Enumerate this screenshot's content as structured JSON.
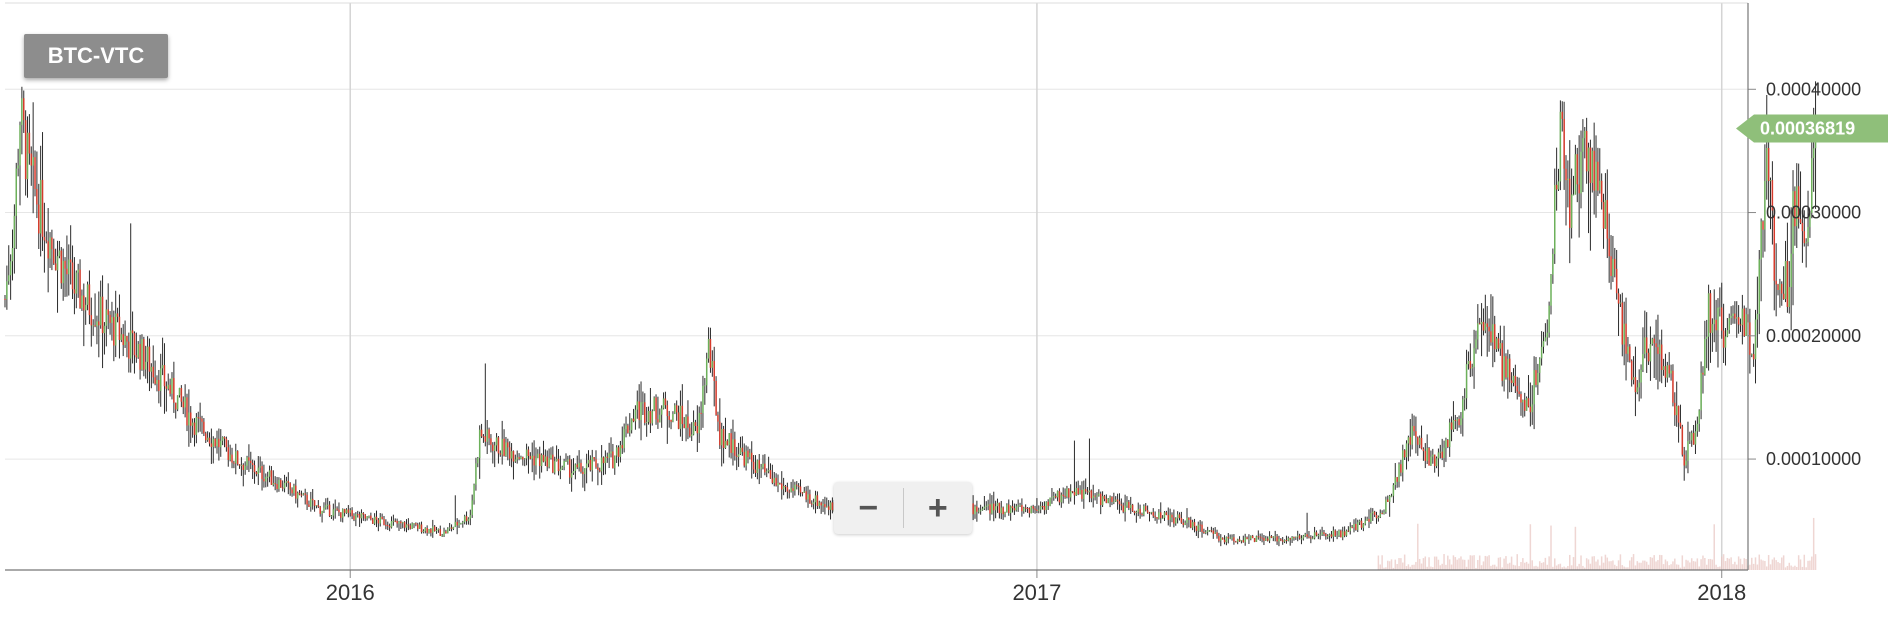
{
  "chart_data": {
    "type": "candlestick",
    "pair": "BTC-VTC",
    "last_price": "0.00036819",
    "x_ticks": [
      "2016",
      "2017",
      "2018"
    ],
    "y_ticks": [
      "0.00010000",
      "0.00020000",
      "0.00030000",
      "0.00040000"
    ],
    "y_range": [
      1e-05,
      0.00047
    ],
    "x_range": [
      "2015-07-01",
      "2018-01-15"
    ],
    "grid": true,
    "colors": {
      "up": "#6cb05a",
      "down": "#d63a2b",
      "wick": "#2b2b2b",
      "badge": "#8fbf7a",
      "volume": "#e8c5c1"
    },
    "anchors": [
      [
        "2015-07-01",
        0.00023
      ],
      [
        "2015-07-06",
        0.0003
      ],
      [
        "2015-07-09",
        0.00038
      ],
      [
        "2015-07-14",
        0.00033
      ],
      [
        "2015-07-25",
        0.00028
      ],
      [
        "2015-08-06",
        0.00024
      ],
      [
        "2015-08-25",
        0.00021
      ],
      [
        "2015-09-15",
        0.00018
      ],
      [
        "2015-10-10",
        0.00013
      ],
      [
        "2015-11-01",
        0.0001
      ],
      [
        "2015-11-25",
        8e-05
      ],
      [
        "2015-12-15",
        6e-05
      ],
      [
        "2016-01-15",
        5e-05
      ],
      [
        "2016-02-05",
        4.5e-05
      ],
      [
        "2016-02-20",
        4e-05
      ],
      [
        "2016-03-05",
        5.5e-05
      ],
      [
        "2016-03-10",
        0.00012
      ],
      [
        "2016-03-20",
        0.00011
      ],
      [
        "2016-04-10",
        0.0001
      ],
      [
        "2016-05-01",
        9e-05
      ],
      [
        "2016-05-20",
        0.0001
      ],
      [
        "2016-06-01",
        0.00014
      ],
      [
        "2016-06-20",
        0.00014
      ],
      [
        "2016-07-04",
        0.00012
      ],
      [
        "2016-07-10",
        0.00019
      ],
      [
        "2016-07-16",
        0.00012
      ],
      [
        "2016-08-15",
        8e-05
      ],
      [
        "2016-09-15",
        6e-05
      ],
      [
        "2016-10-10",
        5.5e-05
      ],
      [
        "2016-12-01",
        6e-05
      ],
      [
        "2017-01-01",
        6e-05
      ],
      [
        "2017-01-20",
        7.5e-05
      ],
      [
        "2017-02-20",
        6e-05
      ],
      [
        "2017-03-20",
        5e-05
      ],
      [
        "2017-04-10",
        3.5e-05
      ],
      [
        "2017-05-10",
        3.5e-05
      ],
      [
        "2017-06-15",
        4e-05
      ],
      [
        "2017-07-05",
        6e-05
      ],
      [
        "2017-07-20",
        0.00012
      ],
      [
        "2017-08-01",
        9.5e-05
      ],
      [
        "2017-08-15",
        0.00014
      ],
      [
        "2017-08-25",
        0.00022
      ],
      [
        "2017-09-05",
        0.00018
      ],
      [
        "2017-09-20",
        0.00014
      ],
      [
        "2017-10-01",
        0.00022
      ],
      [
        "2017-10-07",
        0.00038
      ],
      [
        "2017-10-12",
        0.0003
      ],
      [
        "2017-10-20",
        0.00036
      ],
      [
        "2017-10-28",
        0.00032
      ],
      [
        "2017-11-05",
        0.00024
      ],
      [
        "2017-11-15",
        0.00016
      ],
      [
        "2017-11-25",
        0.0002
      ],
      [
        "2017-12-05",
        0.00016
      ],
      [
        "2017-12-12",
        0.0001
      ],
      [
        "2017-12-18",
        0.00012
      ],
      [
        "2017-12-25",
        0.00022
      ],
      [
        "2018-01-05",
        0.0002
      ],
      [
        "2018-01-12",
        0.00022
      ],
      [
        "2018-01-18",
        0.00018
      ],
      [
        "2018-01-25",
        0.00035
      ],
      [
        "2018-01-29",
        0.00026
      ],
      [
        "2018-02-05",
        0.00024
      ],
      [
        "2018-02-10",
        0.00033
      ],
      [
        "2018-02-16",
        0.00027
      ],
      [
        "2018-02-20",
        0.00037
      ]
    ]
  }
}
